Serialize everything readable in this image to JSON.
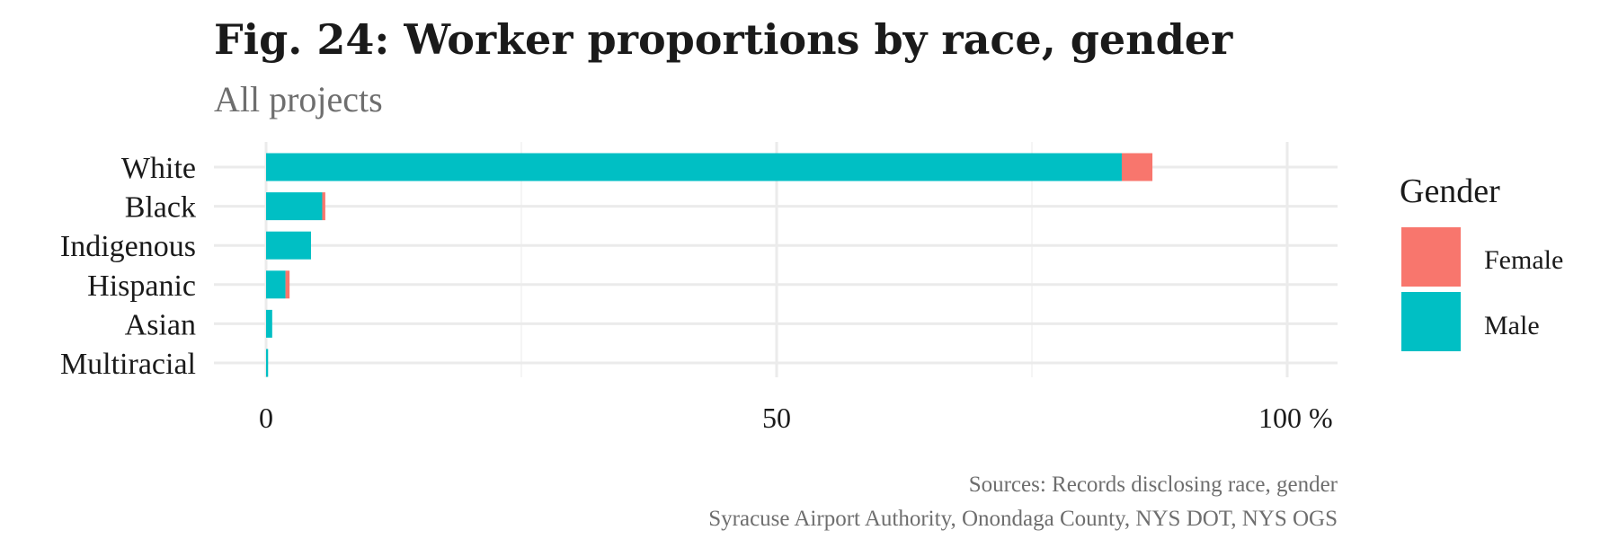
{
  "chart_data": {
    "type": "bar",
    "orientation": "horizontal",
    "stacked": true,
    "title": "Fig. 24: Worker proportions by race, gender",
    "subtitle": "All projects",
    "categories": [
      "White",
      "Black",
      "Indigenous",
      "Hispanic",
      "Asian",
      "Multiracial"
    ],
    "series": [
      {
        "name": "Male",
        "color": "#00BFC4",
        "values": [
          83.8,
          5.5,
          4.4,
          1.9,
          0.6,
          0.2
        ]
      },
      {
        "name": "Female",
        "color": "#F8766D",
        "values": [
          3.0,
          0.3,
          0.0,
          0.4,
          0.0,
          0.0
        ]
      }
    ],
    "x_ticks": [
      "0",
      "50",
      "100 %"
    ],
    "xlim": [
      0,
      105
    ],
    "xlabel": "",
    "ylabel": "",
    "grid": true,
    "legend": {
      "title": "Gender",
      "position": "right",
      "entries": [
        {
          "label": "Female",
          "color": "#F8766D"
        },
        {
          "label": "Male",
          "color": "#00BFC4"
        }
      ]
    },
    "caption": [
      "Sources: Records disclosing race, gender",
      "Syracuse Airport Authority, Onondaga County, NYS DOT, NYS OGS"
    ]
  }
}
